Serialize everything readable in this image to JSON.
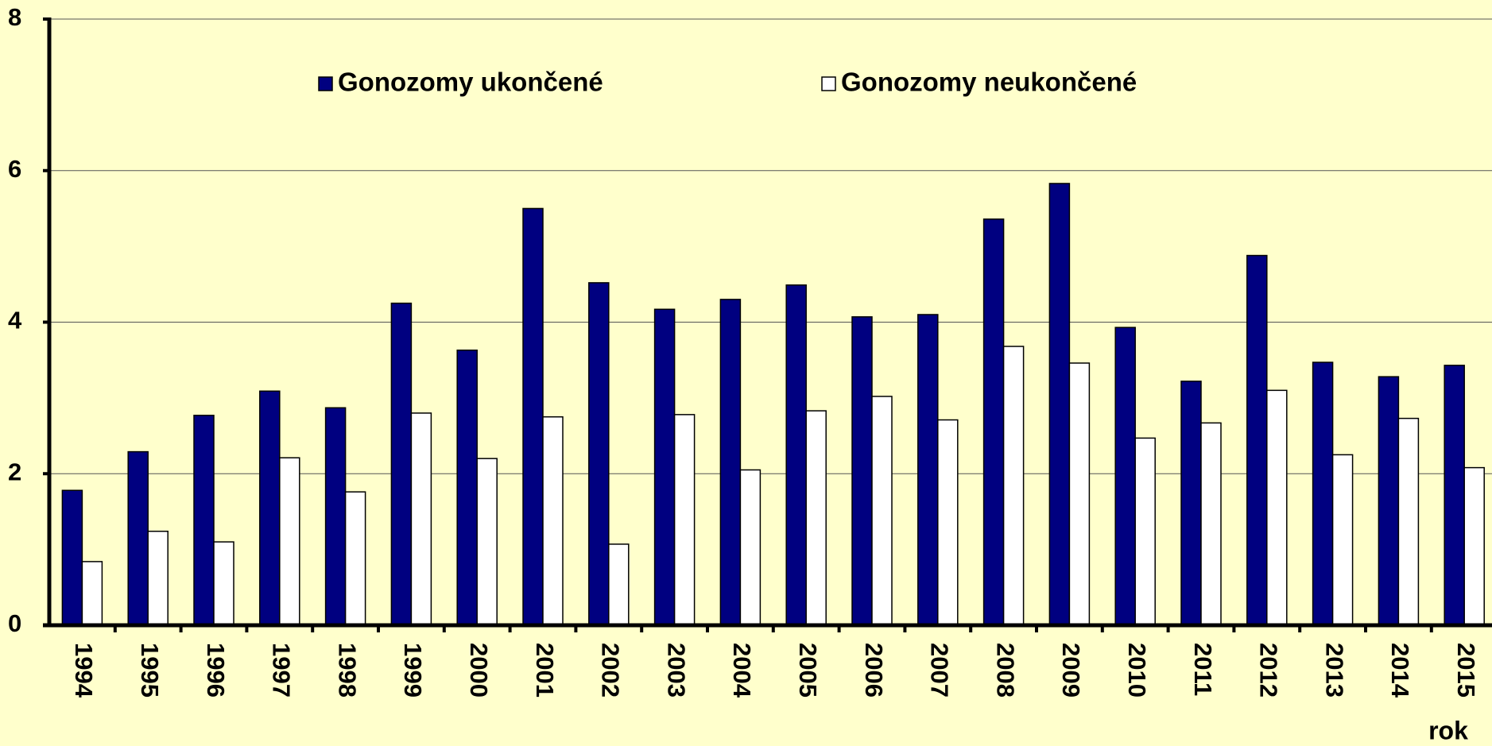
{
  "chart_data": {
    "type": "bar",
    "x_label": "rok",
    "categories": [
      "1994",
      "1995",
      "1996",
      "1997",
      "1998",
      "1999",
      "2000",
      "2001",
      "2002",
      "2003",
      "2004",
      "2005",
      "2006",
      "2007",
      "2008",
      "2009",
      "2010",
      "2011",
      "2012",
      "2013",
      "2014",
      "2015"
    ],
    "series": [
      {
        "name": "Gonozomy ukončené",
        "color": "#000080",
        "values": [
          1.78,
          2.29,
          2.77,
          3.09,
          2.87,
          4.25,
          3.63,
          5.5,
          4.52,
          4.17,
          4.3,
          4.49,
          4.07,
          4.1,
          5.36,
          5.83,
          3.93,
          3.22,
          4.88,
          3.47,
          3.28,
          3.43
        ]
      },
      {
        "name": "Gonozomy neukončené",
        "color": "#ffffff",
        "values": [
          0.84,
          1.24,
          1.1,
          2.21,
          1.76,
          2.8,
          2.2,
          2.75,
          1.07,
          2.78,
          2.05,
          2.83,
          3.02,
          2.71,
          3.68,
          3.46,
          2.47,
          2.67,
          3.1,
          2.25,
          2.73,
          2.08
        ]
      }
    ],
    "ylim": [
      0,
      8
    ],
    "yticks": [
      0,
      2,
      4,
      6,
      8
    ],
    "grid": true,
    "legend": "top"
  }
}
